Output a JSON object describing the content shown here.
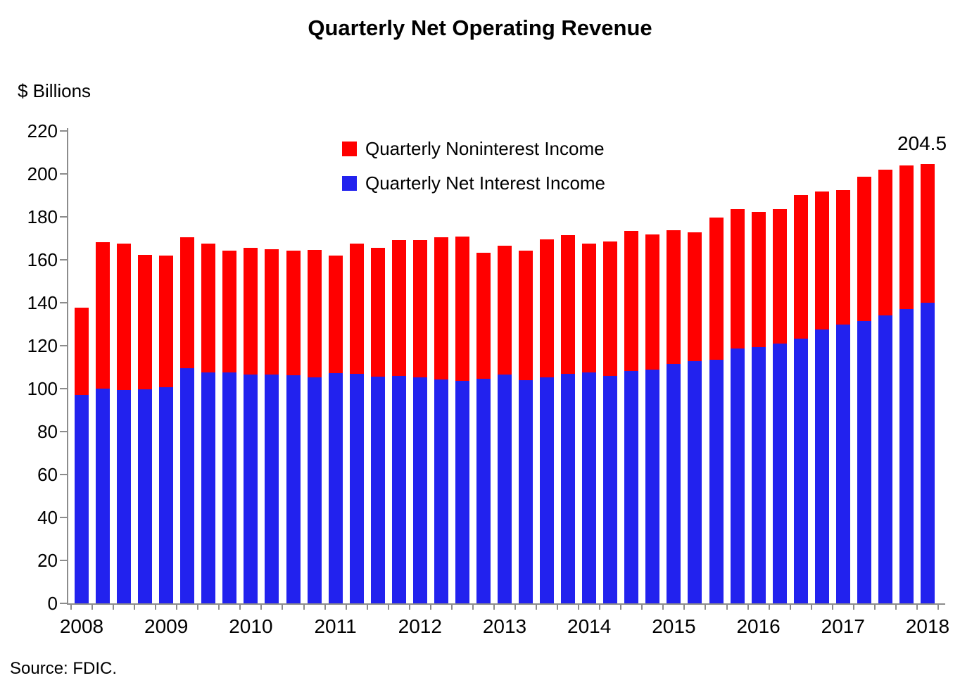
{
  "title": "Quarterly Net Operating Revenue",
  "ylabel": "$ Billions",
  "source": "Source: FDIC.",
  "chart_data": {
    "type": "bar",
    "stacked": true,
    "title": "Quarterly Net Operating Revenue",
    "ylabel": "$ Billions",
    "xlabel": "",
    "grid": false,
    "legend_position": "top-center",
    "ylim": [
      0,
      220
    ],
    "y_ticks": [
      0,
      20,
      40,
      60,
      80,
      100,
      120,
      140,
      160,
      180,
      200,
      220
    ],
    "x_tick_labels": [
      "2008",
      "2009",
      "2010",
      "2011",
      "2012",
      "2013",
      "2014",
      "2015",
      "2016",
      "2017",
      "2018"
    ],
    "categories": [
      "2008 Q1",
      "2008 Q2",
      "2008 Q3",
      "2008 Q4",
      "2009 Q1",
      "2009 Q2",
      "2009 Q3",
      "2009 Q4",
      "2010 Q1",
      "2010 Q2",
      "2010 Q3",
      "2010 Q4",
      "2011 Q1",
      "2011 Q2",
      "2011 Q3",
      "2011 Q4",
      "2012 Q1",
      "2012 Q2",
      "2012 Q3",
      "2012 Q4",
      "2013 Q1",
      "2013 Q2",
      "2013 Q3",
      "2013 Q4",
      "2014 Q1",
      "2014 Q2",
      "2014 Q3",
      "2014 Q4",
      "2015 Q1",
      "2015 Q2",
      "2015 Q3",
      "2015 Q4",
      "2016 Q1",
      "2016 Q2",
      "2016 Q3",
      "2016 Q4",
      "2017 Q1",
      "2017 Q2",
      "2017 Q3",
      "2017 Q4",
      "2018 Q1"
    ],
    "series": [
      {
        "name": "Quarterly Net Interest Income",
        "color": "#2222EE",
        "values": [
          96.9,
          99.9,
          99.3,
          99.7,
          100.8,
          109.5,
          107.6,
          107.5,
          106.4,
          106.4,
          106.2,
          105.1,
          107.3,
          106.8,
          105.7,
          105.9,
          105.1,
          104.3,
          103.7,
          104.6,
          106.4,
          104.0,
          105.1,
          107.0,
          107.5,
          105.9,
          108.2,
          109.0,
          111.4,
          112.8,
          113.3,
          118.6,
          119.3,
          121.0,
          123.3,
          127.5,
          129.8,
          131.4,
          134.1,
          137.0,
          140.1
        ]
      },
      {
        "name": "Quarterly Noninterest Income",
        "color": "#FF0000",
        "values": [
          40.7,
          68.4,
          68.3,
          62.5,
          61.2,
          61.0,
          59.8,
          56.7,
          59.3,
          58.5,
          58.0,
          59.6,
          54.7,
          60.6,
          59.8,
          63.4,
          64.0,
          66.3,
          67.1,
          58.7,
          60.3,
          60.2,
          64.3,
          64.6,
          60.1,
          62.6,
          65.2,
          62.8,
          62.4,
          60.1,
          66.4,
          65.0,
          63.1,
          62.5,
          67.0,
          64.4,
          62.7,
          67.4,
          68.0,
          66.8,
          64.4
        ]
      }
    ],
    "totals": [
      137.6,
      168.3,
      167.6,
      162.2,
      162.0,
      170.5,
      167.4,
      164.2,
      165.7,
      164.9,
      164.2,
      164.7,
      162.0,
      167.4,
      165.5,
      169.3,
      169.1,
      170.6,
      170.8,
      163.3,
      166.7,
      164.2,
      169.4,
      171.6,
      167.6,
      168.5,
      173.4,
      171.8,
      173.8,
      172.9,
      179.7,
      183.6,
      182.4,
      183.5,
      190.3,
      191.9,
      192.5,
      198.8,
      202.1,
      203.8,
      204.5
    ],
    "annotation": {
      "text": "204.5",
      "category": "2018 Q1"
    }
  }
}
